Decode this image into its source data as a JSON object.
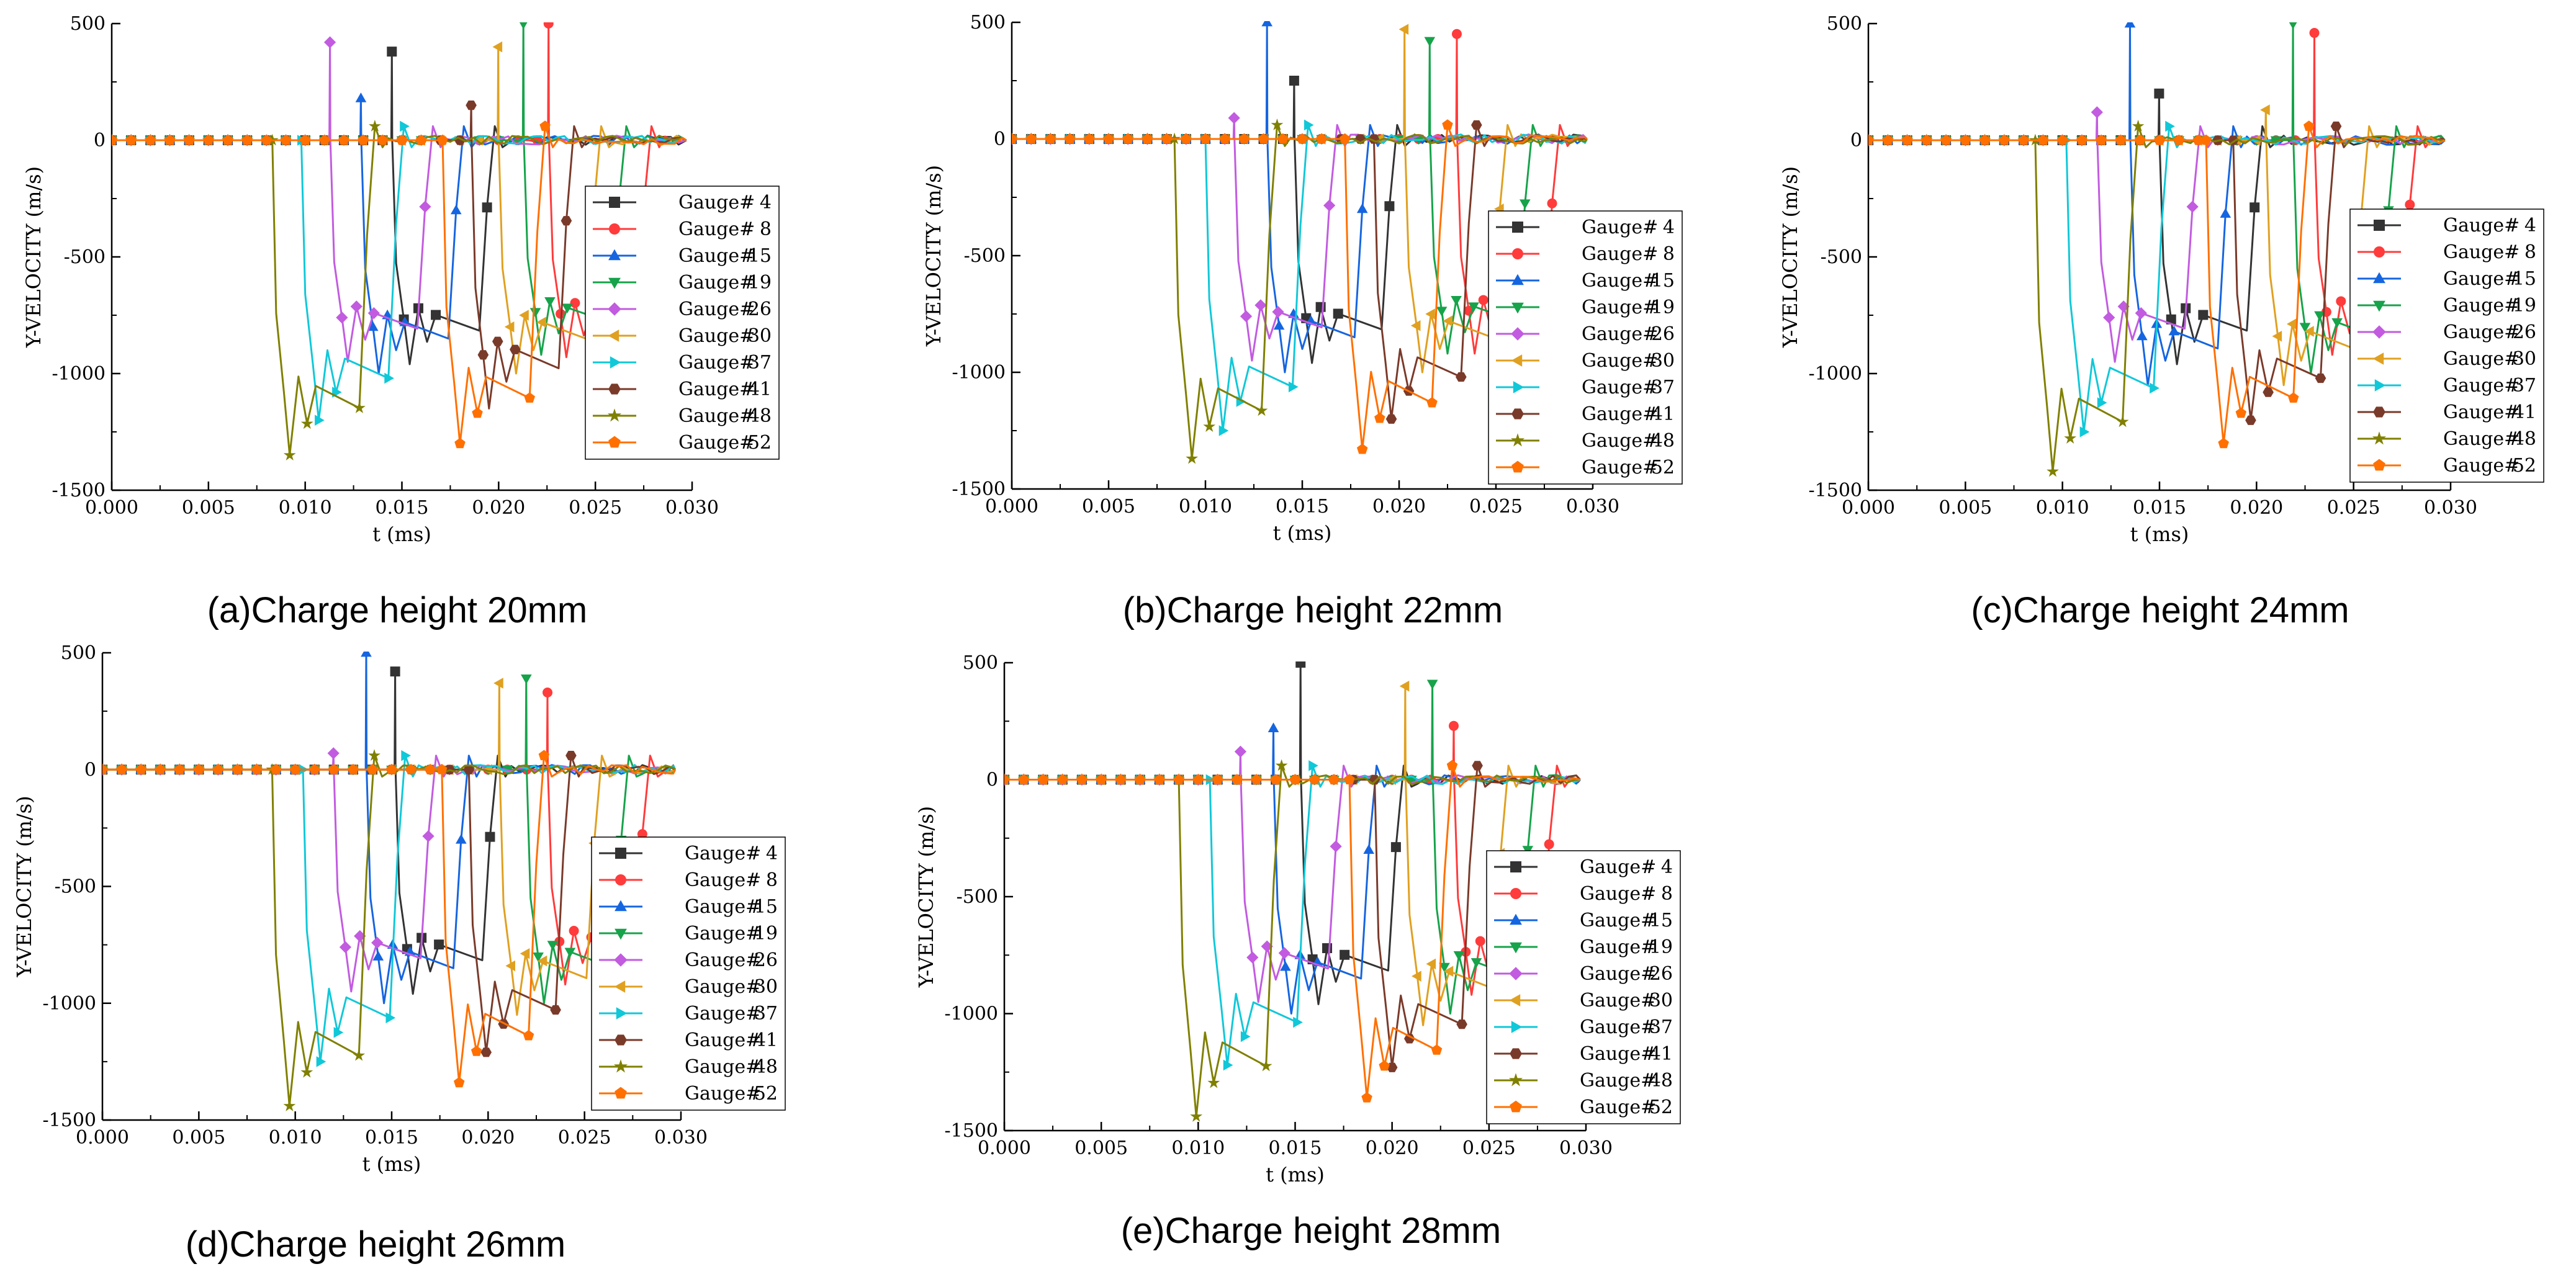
{
  "chart_data": [
    {
      "type": "line",
      "title": "(a)Charge height 20mm",
      "xlabel": "t (ms)",
      "ylabel": "Y-VELOCITY (m/s)",
      "xlim": [
        0.0,
        0.03
      ],
      "ylim": [
        -1500,
        500
      ],
      "xticks": [
        "0.000",
        "0.005",
        "0.010",
        "0.015",
        "0.020",
        "0.025",
        "0.030"
      ],
      "yticks": [
        "500",
        "0",
        "-500",
        "-1000",
        "-1500"
      ],
      "legend_position": "right-middle",
      "series": [
        {
          "name": "Gauge#  4",
          "arrival": 0.0145,
          "end": 0.0148,
          "spike": 380,
          "trough": -960
        },
        {
          "name": "Gauge#  8",
          "arrival": 0.0226,
          "end": 0.023,
          "spike": 500,
          "trough": -930
        },
        {
          "name": "Gauge#  15",
          "arrival": 0.0129,
          "end": 0.0145,
          "spike": 180,
          "trough": -1000
        },
        {
          "name": "Gauge#  19",
          "arrival": 0.0213,
          "end": 0.0218,
          "spike": 500,
          "trough": -920
        },
        {
          "name": "Gauge#  26",
          "arrival": 0.0113,
          "end": 0.0115,
          "spike": 420,
          "trough": -950
        },
        {
          "name": "Gauge#  30",
          "arrival": 0.02,
          "end": 0.0203,
          "spike": 400,
          "trough": -1000
        },
        {
          "name": "Gauge#  37",
          "arrival": 0.0098,
          "end": 0.01,
          "spike": 10,
          "trough": -1200
        },
        {
          "name": "Gauge#  41",
          "arrival": 0.0186,
          "end": 0.019,
          "spike": 150,
          "trough": -1150
        },
        {
          "name": "Gauge#  48",
          "arrival": 0.0083,
          "end": 0.0086,
          "spike": 10,
          "trough": -1350
        },
        {
          "name": "Gauge#  52",
          "arrival": 0.0171,
          "end": 0.0176,
          "spike": 10,
          "trough": -1300
        }
      ]
    },
    {
      "type": "line",
      "title": "(b)Charge height 22mm",
      "xlabel": "t (ms)",
      "ylabel": "Y-VELOCITY (m/s)",
      "xlim": [
        0.0,
        0.03
      ],
      "ylim": [
        -1500,
        500
      ],
      "xticks": [
        "0.000",
        "0.005",
        "0.010",
        "0.015",
        "0.020",
        "0.025",
        "0.030"
      ],
      "yticks": [
        "500",
        "0",
        "-500",
        "-1000",
        "-1500"
      ],
      "legend_position": "right-middle",
      "series": [
        {
          "name": "Gauge#  4",
          "arrival": 0.0146,
          "end": 0.015,
          "spike": 250,
          "trough": -960
        },
        {
          "name": "Gauge#  8",
          "arrival": 0.023,
          "end": 0.0233,
          "spike": 450,
          "trough": -920
        },
        {
          "name": "Gauge#  15",
          "arrival": 0.0132,
          "end": 0.0147,
          "spike": 500,
          "trough": -1000
        },
        {
          "name": "Gauge#  19",
          "arrival": 0.0216,
          "end": 0.0221,
          "spike": 420,
          "trough": -920
        },
        {
          "name": "Gauge#  26",
          "arrival": 0.0115,
          "end": 0.0118,
          "spike": 90,
          "trough": -950
        },
        {
          "name": "Gauge#  30",
          "arrival": 0.0203,
          "end": 0.0205,
          "spike": 470,
          "trough": -1000
        },
        {
          "name": "Gauge#  37",
          "arrival": 0.01,
          "end": 0.0102,
          "spike": 10,
          "trough": -1250
        },
        {
          "name": "Gauge#  41",
          "arrival": 0.0187,
          "end": 0.0192,
          "spike": 10,
          "trough": -1200
        },
        {
          "name": "Gauge#  48",
          "arrival": 0.0084,
          "end": 0.0087,
          "spike": 10,
          "trough": -1370
        },
        {
          "name": "Gauge#  52",
          "arrival": 0.0172,
          "end": 0.0178,
          "spike": 10,
          "trough": -1330
        }
      ]
    },
    {
      "type": "line",
      "title": "(c)Charge height 24mm",
      "xlabel": "t (ms)",
      "ylabel": "Y-VELOCITY (m/s)",
      "xlim": [
        0.0,
        0.03
      ],
      "ylim": [
        -1500,
        500
      ],
      "xticks": [
        "0.000",
        "0.005",
        "0.010",
        "0.015",
        "0.020",
        "0.025",
        "0.030"
      ],
      "yticks": [
        "500",
        "0",
        "-500",
        "-1000",
        "-1500"
      ],
      "legend_position": "right-middle",
      "series": [
        {
          "name": "Gauge#  4",
          "arrival": 0.015,
          "end": 0.0153,
          "spike": 200,
          "trough": -960
        },
        {
          "name": "Gauge#  8",
          "arrival": 0.023,
          "end": 0.0234,
          "spike": 460,
          "trough": -920
        },
        {
          "name": "Gauge#  15",
          "arrival": 0.0135,
          "end": 0.015,
          "spike": 500,
          "trough": -1050
        },
        {
          "name": "Gauge#  19",
          "arrival": 0.0219,
          "end": 0.0223,
          "spike": 500,
          "trough": -1000
        },
        {
          "name": "Gauge#  26",
          "arrival": 0.0118,
          "end": 0.0121,
          "spike": 120,
          "trough": -950
        },
        {
          "name": "Gauge#  30",
          "arrival": 0.0205,
          "end": 0.0208,
          "spike": 130,
          "trough": -1050
        },
        {
          "name": "Gauge#  37",
          "arrival": 0.0102,
          "end": 0.0104,
          "spike": 10,
          "trough": -1250
        },
        {
          "name": "Gauge#  41",
          "arrival": 0.0188,
          "end": 0.0194,
          "spike": 10,
          "trough": -1200
        },
        {
          "name": "Gauge#  48",
          "arrival": 0.0086,
          "end": 0.009,
          "spike": 10,
          "trough": -1420
        },
        {
          "name": "Gauge#  52",
          "arrival": 0.0174,
          "end": 0.018,
          "spike": 10,
          "trough": -1300
        }
      ]
    },
    {
      "type": "line",
      "title": "(d)Charge height 26mm",
      "xlabel": "t (ms)",
      "ylabel": "Y-VELOCITY (m/s)",
      "xlim": [
        0.0,
        0.03
      ],
      "ylim": [
        -1500,
        500
      ],
      "xticks": [
        "0.000",
        "0.005",
        "0.010",
        "0.015",
        "0.020",
        "0.025",
        "0.030"
      ],
      "yticks": [
        "500",
        "0",
        "-500",
        "-1000",
        "-1500"
      ],
      "legend_position": "right-middle",
      "series": [
        {
          "name": "Gauge#  4",
          "arrival": 0.0152,
          "end": 0.0155,
          "spike": 420,
          "trough": -960
        },
        {
          "name": "Gauge#  8",
          "arrival": 0.0231,
          "end": 0.0235,
          "spike": 330,
          "trough": -920
        },
        {
          "name": "Gauge#  15",
          "arrival": 0.0137,
          "end": 0.0152,
          "spike": 500,
          "trough": -1000
        },
        {
          "name": "Gauge#  19",
          "arrival": 0.022,
          "end": 0.0225,
          "spike": 390,
          "trough": -1000
        },
        {
          "name": "Gauge#  26",
          "arrival": 0.012,
          "end": 0.0124,
          "spike": 70,
          "trough": -950
        },
        {
          "name": "Gauge#  30",
          "arrival": 0.0206,
          "end": 0.0209,
          "spike": 370,
          "trough": -1050
        },
        {
          "name": "Gauge#  37",
          "arrival": 0.0104,
          "end": 0.0107,
          "spike": 10,
          "trough": -1250
        },
        {
          "name": "Gauge#  41",
          "arrival": 0.019,
          "end": 0.0196,
          "spike": 10,
          "trough": -1210
        },
        {
          "name": "Gauge#  48",
          "arrival": 0.0088,
          "end": 0.0093,
          "spike": 10,
          "trough": -1440
        },
        {
          "name": "Gauge#  52",
          "arrival": 0.0176,
          "end": 0.0182,
          "spike": 10,
          "trough": -1340
        }
      ]
    },
    {
      "type": "line",
      "title": "(e)Charge height 28mm",
      "xlabel": "t (ms)",
      "ylabel": "Y-VELOCITY (m/s)",
      "xlim": [
        0.0,
        0.03
      ],
      "ylim": [
        -1500,
        500
      ],
      "xticks": [
        "0.000",
        "0.005",
        "0.010",
        "0.015",
        "0.020",
        "0.025",
        "0.030"
      ],
      "yticks": [
        "500",
        "0",
        "-500",
        "-1000",
        "-1500"
      ],
      "legend_position": "right-middle",
      "series": [
        {
          "name": "Gauge#  4",
          "arrival": 0.0153,
          "end": 0.0156,
          "spike": 500,
          "trough": -960
        },
        {
          "name": "Gauge#  8",
          "arrival": 0.0232,
          "end": 0.0236,
          "spike": 230,
          "trough": -920
        },
        {
          "name": "Gauge#  15",
          "arrival": 0.0139,
          "end": 0.0154,
          "spike": 220,
          "trough": -1000
        },
        {
          "name": "Gauge#  19",
          "arrival": 0.0221,
          "end": 0.0226,
          "spike": 410,
          "trough": -1000
        },
        {
          "name": "Gauge#  26",
          "arrival": 0.0122,
          "end": 0.0126,
          "spike": 120,
          "trough": -950
        },
        {
          "name": "Gauge#  30",
          "arrival": 0.0207,
          "end": 0.0211,
          "spike": 400,
          "trough": -1050
        },
        {
          "name": "Gauge#  37",
          "arrival": 0.0106,
          "end": 0.0109,
          "spike": 10,
          "trough": -1220
        },
        {
          "name": "Gauge#  41",
          "arrival": 0.0191,
          "end": 0.0197,
          "spike": 10,
          "trough": -1230
        },
        {
          "name": "Gauge#  48",
          "arrival": 0.009,
          "end": 0.0095,
          "spike": 10,
          "trough": -1440
        },
        {
          "name": "Gauge#  52",
          "arrival": 0.0178,
          "end": 0.0184,
          "spike": 10,
          "trough": -1360
        }
      ]
    }
  ],
  "colors": {
    "Gauge#  4": "#333333",
    "Gauge#  8": "#ff3b3b",
    "Gauge#  15": "#1565e0",
    "Gauge#  19": "#16a34a",
    "Gauge#  26": "#c25be0",
    "Gauge#  30": "#e0a020",
    "Gauge#  37": "#10c8d8",
    "Gauge#  41": "#7a3a2a",
    "Gauge#  48": "#808000",
    "Gauge#  52": "#ff7000"
  },
  "markers": {
    "Gauge#  4": "square",
    "Gauge#  8": "circle",
    "Gauge#  15": "triangle-up",
    "Gauge#  19": "triangle-down",
    "Gauge#  26": "diamond",
    "Gauge#  30": "triangle-left",
    "Gauge#  37": "triangle-right",
    "Gauge#  41": "hexagon",
    "Gauge#  48": "star",
    "Gauge#  52": "pentagon"
  }
}
